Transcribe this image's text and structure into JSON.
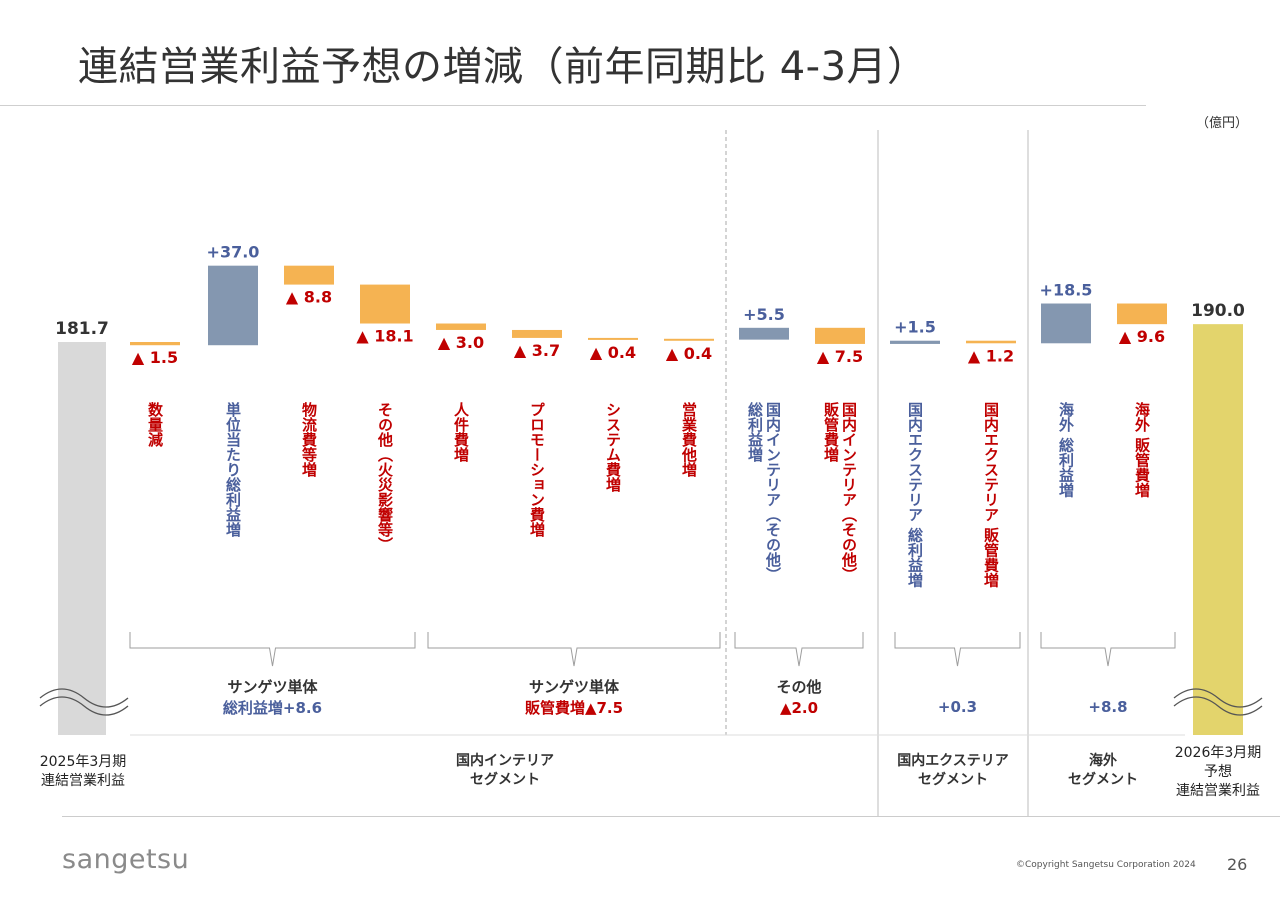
{
  "title": "連結営業利益予想の増減（前年同期比 4-3月）",
  "unit": "（億円）",
  "chart_data": {
    "type": "waterfall",
    "start": {
      "value": 181.7,
      "label": "181.7",
      "caption": [
        "2025年3月期",
        "連結営業利益"
      ],
      "color": "#d9d9d9"
    },
    "end": {
      "value": 190.0,
      "label": "190.0",
      "caption": [
        "2026年3月期",
        "予想",
        "連結営業利益"
      ],
      "color": "#e3d46c"
    },
    "steps": [
      {
        "name": "数量減",
        "value": -1.5,
        "label": "▲ 1.5"
      },
      {
        "name": "単位当たり総利益増",
        "value": 37.0,
        "label": "+37.0"
      },
      {
        "name": "物流費等増",
        "value": -8.8,
        "label": "▲ 8.8"
      },
      {
        "name": "その他（火災影響等）",
        "value": -18.1,
        "label": "▲ 18.1"
      },
      {
        "name": "人件費増",
        "value": -3.0,
        "label": "▲ 3.0"
      },
      {
        "name": "プロモーション費増",
        "value": -3.7,
        "label": "▲ 3.7"
      },
      {
        "name": "システム費増",
        "value": -0.4,
        "label": "▲ 0.4"
      },
      {
        "name": "営業費他増",
        "value": -0.4,
        "label": "▲ 0.4"
      },
      {
        "name": "国内インテリア（その他）総利益増",
        "value": 5.5,
        "label": "+5.5"
      },
      {
        "name": "国内インテリア（その他）販管費増",
        "value": -7.5,
        "label": "▲ 7.5"
      },
      {
        "name": "国内エクステリア 総利益増",
        "value": 1.5,
        "label": "+1.5"
      },
      {
        "name": "国内エクステリア 販管費増",
        "value": -1.2,
        "label": "▲ 1.2"
      },
      {
        "name": "海外 総利益増",
        "value": 18.5,
        "label": "+18.5"
      },
      {
        "name": "海外 販管費増",
        "value": -9.6,
        "label": "▲ 9.6"
      }
    ],
    "groups": [
      {
        "lines": [
          "サンゲツ単体",
          "総利益増+8.6"
        ]
      },
      {
        "lines": [
          "サンゲツ単体",
          "販管費増▲7.5"
        ]
      },
      {
        "lines": [
          "その他",
          "▲2.0"
        ]
      },
      {
        "lines": [
          "+0.3"
        ]
      },
      {
        "lines": [
          "+8.8"
        ]
      }
    ],
    "segments": [
      {
        "lines": [
          "国内インテリア",
          "セグメント"
        ]
      },
      {
        "lines": [
          "国内エクステリア",
          "セグメント"
        ]
      },
      {
        "lines": [
          "海外",
          "セグメント"
        ]
      }
    ],
    "colors": {
      "increase": "#8497b0",
      "decrease": "#f5b352",
      "increase_text": "#4a5f9c",
      "decrease_text": "#c00000"
    }
  },
  "footer": {
    "logo": "sangetsu",
    "copyright": "©Copyright Sangetsu Corporation 2024",
    "page": "26"
  }
}
